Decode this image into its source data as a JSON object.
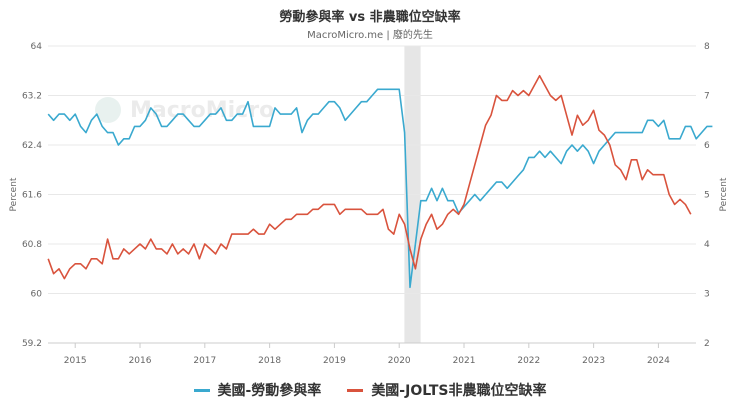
{
  "chart_data": {
    "type": "line",
    "title": "勞動參與率 vs 非農職位空缺率",
    "subtitle": "MacroMicro.me | 廢的先生",
    "watermark": "MacroMicro",
    "x_range": [
      2014.58,
      2024.58
    ],
    "x_ticks": [
      "2015",
      "2016",
      "2017",
      "2018",
      "2019",
      "2020",
      "2021",
      "2022",
      "2023",
      "2024"
    ],
    "shaded_band": [
      2020.08,
      2020.33
    ],
    "left_axis": {
      "label": "Percent",
      "range": [
        59.2,
        64
      ],
      "ticks": [
        "59.2",
        "60",
        "60.8",
        "61.6",
        "62.4",
        "63.2",
        "64"
      ]
    },
    "right_axis": {
      "label": "Percent",
      "range": [
        2,
        8
      ],
      "ticks": [
        "2",
        "3",
        "4",
        "5",
        "6",
        "7",
        "8"
      ]
    },
    "legend_position": "bottom",
    "series": [
      {
        "name": "美國-勞動參與率",
        "axis": "left",
        "color": "#3aa9cf",
        "start": "2014-08",
        "values": [
          62.9,
          62.8,
          62.9,
          62.9,
          62.8,
          62.9,
          62.7,
          62.6,
          62.8,
          62.9,
          62.7,
          62.6,
          62.6,
          62.4,
          62.5,
          62.5,
          62.7,
          62.7,
          62.8,
          63.0,
          62.9,
          62.7,
          62.7,
          62.8,
          62.9,
          62.9,
          62.8,
          62.7,
          62.7,
          62.8,
          62.9,
          62.9,
          63.0,
          62.8,
          62.8,
          62.9,
          62.9,
          63.1,
          62.7,
          62.7,
          62.7,
          62.7,
          63.0,
          62.9,
          62.9,
          62.9,
          63.0,
          62.6,
          62.8,
          62.9,
          62.9,
          63.0,
          63.1,
          63.1,
          63.0,
          62.8,
          62.9,
          63.0,
          63.1,
          63.1,
          63.2,
          63.3,
          63.3,
          63.3,
          63.3,
          63.3,
          62.6,
          60.1,
          60.8,
          61.5,
          61.5,
          61.7,
          61.5,
          61.7,
          61.5,
          61.5,
          61.3,
          61.4,
          61.5,
          61.6,
          61.5,
          61.6,
          61.7,
          61.8,
          61.8,
          61.7,
          61.8,
          61.9,
          62.0,
          62.2,
          62.2,
          62.3,
          62.2,
          62.3,
          62.2,
          62.1,
          62.3,
          62.4,
          62.3,
          62.4,
          62.3,
          62.1,
          62.3,
          62.4,
          62.5,
          62.6,
          62.6,
          62.6,
          62.6,
          62.6,
          62.6,
          62.8,
          62.8,
          62.7,
          62.8,
          62.5,
          62.5,
          62.5,
          62.7,
          62.7,
          62.5,
          62.6,
          62.7,
          62.7
        ]
      },
      {
        "name": "美國-JOLTS非農職位空缺率",
        "axis": "right",
        "color": "#d9533d",
        "start": "2014-08",
        "values": [
          3.7,
          3.4,
          3.5,
          3.3,
          3.5,
          3.6,
          3.6,
          3.5,
          3.7,
          3.7,
          3.6,
          4.1,
          3.7,
          3.7,
          3.9,
          3.8,
          3.9,
          4.0,
          3.9,
          4.1,
          3.9,
          3.9,
          3.8,
          4.0,
          3.8,
          3.9,
          3.8,
          4.0,
          3.7,
          4.0,
          3.9,
          3.8,
          4.0,
          3.9,
          4.2,
          4.2,
          4.2,
          4.2,
          4.3,
          4.2,
          4.2,
          4.4,
          4.3,
          4.4,
          4.5,
          4.5,
          4.6,
          4.6,
          4.6,
          4.7,
          4.7,
          4.8,
          4.8,
          4.8,
          4.6,
          4.7,
          4.7,
          4.7,
          4.7,
          4.6,
          4.6,
          4.6,
          4.7,
          4.3,
          4.2,
          4.6,
          4.4,
          3.9,
          3.5,
          4.1,
          4.4,
          4.6,
          4.3,
          4.4,
          4.6,
          4.7,
          4.6,
          4.8,
          5.2,
          5.6,
          6.0,
          6.4,
          6.6,
          7.0,
          6.9,
          6.9,
          7.1,
          7.0,
          7.1,
          7.0,
          7.2,
          7.4,
          7.2,
          7.0,
          6.9,
          7.0,
          6.6,
          6.2,
          6.6,
          6.4,
          6.5,
          6.7,
          6.3,
          6.2,
          6.0,
          5.6,
          5.5,
          5.3,
          5.7,
          5.7,
          5.3,
          5.5,
          5.4,
          5.4,
          5.4,
          5.0,
          4.8,
          4.9,
          4.8,
          4.6
        ]
      }
    ]
  }
}
